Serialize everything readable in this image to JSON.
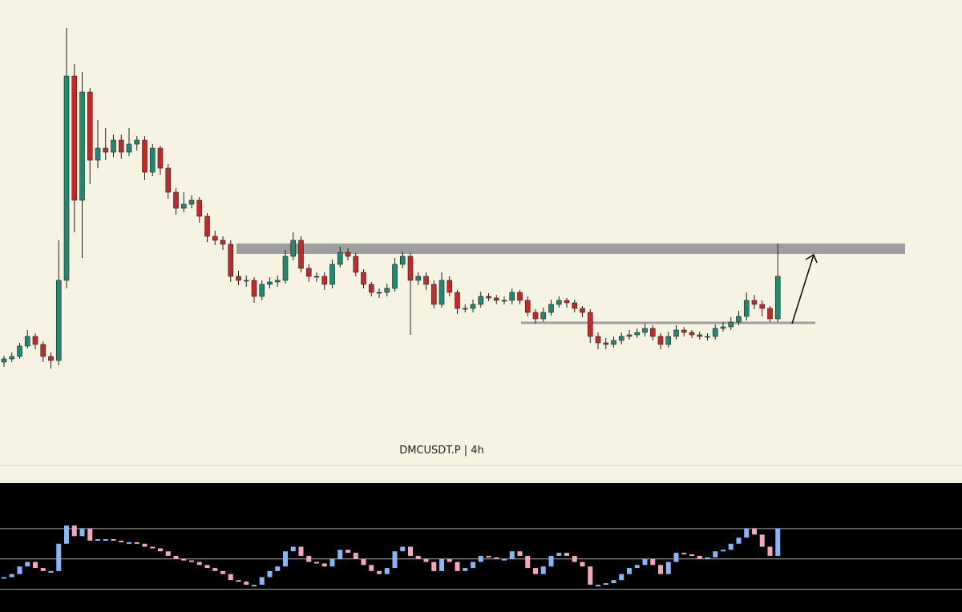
{
  "chart_data": {
    "type": "candlestick",
    "title": "DMCUSDT.P | 4h",
    "open": [
      128,
      132,
      135,
      148,
      160,
      150,
      135,
      130,
      230,
      485,
      330,
      465,
      380,
      395,
      390,
      405,
      390,
      400,
      405,
      365,
      395,
      370,
      340,
      320,
      325,
      330,
      310,
      285,
      280,
      275,
      235,
      230,
      230,
      210,
      225,
      228,
      230,
      260,
      280,
      245,
      235,
      235,
      225,
      250,
      265,
      260,
      240,
      225,
      215,
      215,
      220,
      250,
      260,
      230,
      235,
      225,
      200,
      230,
      215,
      195,
      195,
      200,
      210,
      208,
      205,
      205,
      215,
      205,
      190,
      182,
      190,
      200,
      205,
      202,
      195,
      190,
      160,
      152,
      150,
      155,
      160,
      162,
      165,
      170,
      160,
      150,
      160,
      168,
      165,
      162,
      160,
      160,
      170,
      172,
      178,
      185,
      205,
      200,
      195,
      182
    ],
    "high": [
      136,
      140,
      152,
      168,
      164,
      154,
      140,
      280,
      545,
      500,
      490,
      470,
      430,
      420,
      412,
      412,
      420,
      410,
      410,
      400,
      398,
      375,
      345,
      340,
      336,
      334,
      314,
      292,
      285,
      280,
      242,
      236,
      234,
      230,
      234,
      236,
      268,
      290,
      285,
      250,
      240,
      240,
      256,
      272,
      270,
      264,
      244,
      228,
      220,
      226,
      258,
      266,
      264,
      240,
      240,
      230,
      240,
      235,
      218,
      200,
      206,
      216,
      214,
      212,
      210,
      220,
      218,
      210,
      194,
      196,
      206,
      210,
      208,
      206,
      198,
      194,
      165,
      158,
      160,
      165,
      168,
      170,
      176,
      174,
      164,
      166,
      174,
      172,
      168,
      166,
      164,
      175,
      178,
      184,
      192,
      215,
      212,
      205,
      198,
      276
    ],
    "low": [
      122,
      128,
      132,
      145,
      144,
      128,
      120,
      124,
      220,
      290,
      258,
      350,
      370,
      380,
      384,
      382,
      385,
      392,
      355,
      360,
      362,
      332,
      312,
      315,
      320,
      302,
      278,
      274,
      268,
      228,
      224,
      222,
      202,
      205,
      220,
      222,
      226,
      255,
      240,
      228,
      228,
      218,
      220,
      246,
      255,
      235,
      220,
      210,
      208,
      210,
      216,
      245,
      162,
      224,
      218,
      195,
      196,
      210,
      188,
      190,
      190,
      196,
      204,
      200,
      200,
      200,
      200,
      185,
      176,
      178,
      186,
      196,
      196,
      190,
      184,
      152,
      144,
      144,
      146,
      150,
      156,
      158,
      160,
      155,
      144,
      146,
      156,
      160,
      158,
      156,
      155,
      156,
      166,
      168,
      174,
      180,
      194,
      185,
      178,
      178
    ],
    "close": [
      132,
      135,
      148,
      160,
      150,
      135,
      130,
      230,
      485,
      330,
      465,
      380,
      395,
      390,
      405,
      390,
      400,
      405,
      365,
      395,
      370,
      340,
      320,
      325,
      330,
      310,
      285,
      280,
      275,
      235,
      230,
      230,
      210,
      225,
      228,
      230,
      260,
      280,
      245,
      235,
      235,
      225,
      250,
      265,
      260,
      240,
      225,
      215,
      215,
      220,
      250,
      260,
      230,
      235,
      225,
      200,
      230,
      215,
      195,
      195,
      200,
      210,
      208,
      205,
      205,
      215,
      205,
      190,
      182,
      190,
      200,
      205,
      202,
      195,
      190,
      160,
      152,
      150,
      155,
      160,
      162,
      165,
      170,
      160,
      150,
      160,
      168,
      165,
      162,
      160,
      160,
      170,
      172,
      178,
      185,
      205,
      200,
      195,
      182,
      235
    ],
    "ylim": [
      0,
      580
    ],
    "up_color": "#1f8a70",
    "down_color": "#c62828",
    "resistance_zone": [
      263,
      276
    ],
    "support_level": 177,
    "indicator": {
      "ylim": [
        15,
        100
      ],
      "levels": [
        70,
        50,
        30
      ],
      "up_color": "#8ab4f8",
      "down_color": "#f4a7b9",
      "values": [
        38,
        40,
        45,
        48,
        44,
        42,
        42,
        60,
        72,
        65,
        70,
        62,
        63,
        63,
        62,
        61,
        61,
        60,
        58,
        57,
        55,
        52,
        50,
        49,
        48,
        46,
        44,
        42,
        40,
        36,
        35,
        33,
        33,
        38,
        42,
        45,
        55,
        58,
        52,
        48,
        47,
        45,
        50,
        56,
        54,
        50,
        46,
        42,
        40,
        44,
        55,
        58,
        52,
        50,
        48,
        42,
        50,
        48,
        42,
        44,
        48,
        52,
        51,
        50,
        50,
        55,
        52,
        44,
        40,
        45,
        52,
        54,
        52,
        48,
        45,
        33,
        33,
        34,
        36,
        40,
        44,
        46,
        50,
        46,
        40,
        48,
        54,
        53,
        52,
        50,
        51,
        55,
        56,
        60,
        64,
        70,
        66,
        58,
        52,
        70
      ]
    }
  }
}
